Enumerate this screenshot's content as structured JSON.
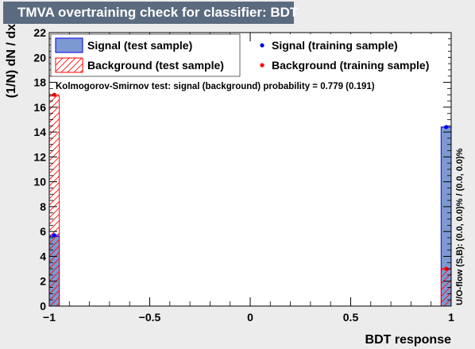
{
  "title": "TMVA overtraining check for classifier: BDT",
  "chart_data": {
    "type": "bar",
    "title": "TMVA overtraining check for classifier: BDT",
    "xlabel": "BDT response",
    "ylabel": "(1/N) dN / dx",
    "xlim": [
      -1,
      1
    ],
    "ylim": [
      0,
      22
    ],
    "xticks": [
      -1,
      -0.5,
      0,
      0.5,
      1
    ],
    "xtick_labels": [
      "−1",
      "−0.5",
      "0",
      "0.5",
      "1"
    ],
    "yticks": [
      0,
      2,
      4,
      6,
      8,
      10,
      12,
      14,
      16,
      18,
      20,
      22
    ],
    "grid": false,
    "legend_position": "top",
    "bin_width": 0.05,
    "series": [
      {
        "name": "Signal (test sample)",
        "style": "filled",
        "color": "#7d99d1",
        "edge": "#0000ee",
        "bins": [
          {
            "x": -0.975,
            "y": 5.6
          },
          {
            "x": 0.975,
            "y": 14.4
          }
        ]
      },
      {
        "name": "Background (test sample)",
        "style": "hatched",
        "color": "#ff0000",
        "bins": [
          {
            "x": -0.975,
            "y": 16.9
          },
          {
            "x": 0.975,
            "y": 3.0
          }
        ]
      },
      {
        "name": "Signal (training sample)",
        "style": "marker",
        "color": "#0000ee",
        "points": [
          {
            "x": -0.975,
            "y": 5.7
          },
          {
            "x": 0.975,
            "y": 14.4
          }
        ]
      },
      {
        "name": "Background (training sample)",
        "style": "marker",
        "color": "#ff0000",
        "points": [
          {
            "x": -0.975,
            "y": 17.0
          },
          {
            "x": 0.975,
            "y": 3.0
          }
        ]
      }
    ],
    "annotations": {
      "ks_test": "Kolmogorov-Smirnov test: signal (background) probability = 0.779 (0.191)",
      "overflow": "U/O-flow (S,B): (0.0, 0.0)% / (0.0, 0.0)%"
    }
  }
}
